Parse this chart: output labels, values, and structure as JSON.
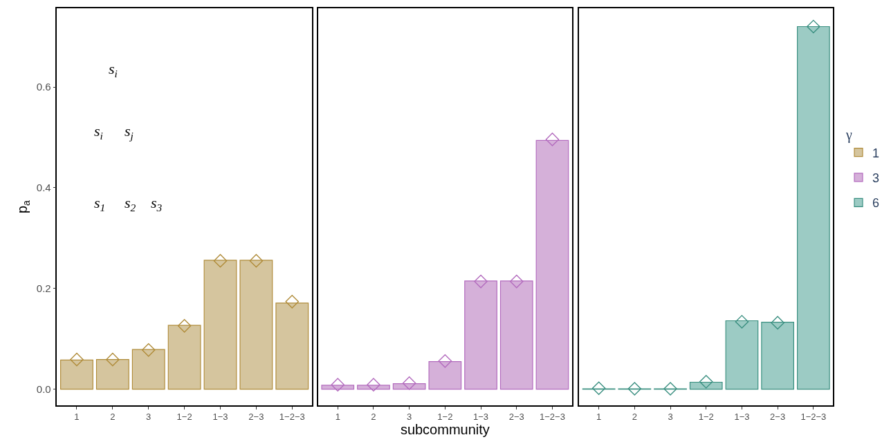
{
  "chart_data": [
    {
      "type": "bar",
      "ylabel": "p$_{a}$",
      "categories": [
        "1",
        "2",
        "3",
        "1−2",
        "1−3",
        "2−3",
        "1−2−3"
      ],
      "ylim": [
        -0.032,
        0.756
      ],
      "yticks": [
        {
          "value": 0,
          "label": "0.0"
        },
        {
          "value": 0.2,
          "label": "0.2"
        },
        {
          "value": 0.4,
          "label": "0.4"
        },
        {
          "value": 0.6,
          "label": "0.6"
        }
      ],
      "legend": "right",
      "legend_title": "γ",
      "annotations": [
        "s$_{i}$",
        "s$_{i}$",
        "s$_{j}$",
        "s$_{1}$",
        "s$_{2}$",
        "s$_{3}$"
      ],
      "series": [
        {
          "name": "1",
          "color": "#d5c59e",
          "values": [
            0.058,
            0.059,
            0.079,
            0.127,
            0.256,
            0.256,
            0.171
          ]
        },
        {
          "type": "scatter",
          "marker": "diamond",
          "color": "#b08c3a",
          "values": [
            0.059,
            0.059,
            0.078,
            0.126,
            0.255,
            0.255,
            0.174
          ]
        }
      ]
    },
    {
      "type": "bar",
      "xlabel": "subcommunity",
      "categories": [
        "1",
        "2",
        "3",
        "1−2",
        "1−3",
        "2−3",
        "1−2−3"
      ],
      "ylim": [
        -0.032,
        0.756
      ],
      "legend": "right",
      "tick_labels": "x",
      "series": [
        {
          "name": "3",
          "color": "#d5b0d9",
          "values": [
            0.008,
            0.008,
            0.011,
            0.055,
            0.215,
            0.215,
            0.494
          ]
        },
        {
          "type": "scatter",
          "marker": "diamond",
          "color": "#b36bbe",
          "values": [
            0.009,
            0.009,
            0.012,
            0.056,
            0.214,
            0.214,
            0.496
          ]
        }
      ]
    },
    {
      "type": "bar",
      "categories": [
        "1",
        "2",
        "3",
        "1−2",
        "1−3",
        "2−3",
        "1−2−3"
      ],
      "ylim": [
        -0.032,
        0.756
      ],
      "legend": "right",
      "tick_labels": "x",
      "series": [
        {
          "name": "6",
          "color": "#9ccbc4",
          "values": [
            0.001,
            0.001,
            0.001,
            0.014,
            0.136,
            0.133,
            0.72
          ]
        },
        {
          "type": "scatter",
          "marker": "diamond",
          "color": "#3a8f80",
          "values": [
            0.002,
            0.001,
            0.001,
            0.015,
            0.134,
            0.132,
            0.72
          ]
        }
      ]
    }
  ]
}
